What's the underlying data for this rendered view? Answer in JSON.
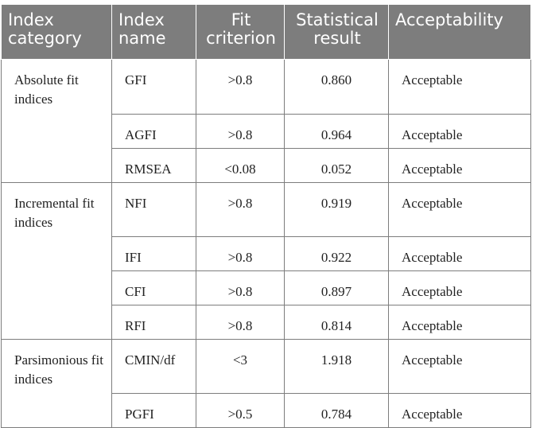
{
  "table": {
    "headers": [
      "Index category",
      "Index name",
      "Fit criterion",
      "Statistical result",
      "Acceptability"
    ],
    "groups": [
      {
        "category": "Absolute fit indices",
        "rows": [
          {
            "name": "GFI",
            "criterion": ">0.8",
            "result": "0.860",
            "acceptability": "Acceptable"
          },
          {
            "name": "AGFI",
            "criterion": ">0.8",
            "result": "0.964",
            "acceptability": "Acceptable"
          },
          {
            "name": "RMSEA",
            "criterion": "<0.08",
            "result": "0.052",
            "acceptability": "Acceptable"
          }
        ]
      },
      {
        "category": "Incremental fit indices",
        "rows": [
          {
            "name": "NFI",
            "criterion": ">0.8",
            "result": "0.919",
            "acceptability": "Acceptable"
          },
          {
            "name": "IFI",
            "criterion": ">0.8",
            "result": "0.922",
            "acceptability": "Acceptable"
          },
          {
            "name": "CFI",
            "criterion": ">0.8",
            "result": "0.897",
            "acceptability": "Acceptable"
          },
          {
            "name": "RFI",
            "criterion": ">0.8",
            "result": "0.814",
            "acceptability": "Acceptable"
          }
        ]
      },
      {
        "category": "Parsimonious fit indices",
        "rows": [
          {
            "name": "CMIN/df",
            "criterion": "<3",
            "result": "1.918",
            "acceptability": "Acceptable"
          },
          {
            "name": "PGFI",
            "criterion": ">0.5",
            "result": "0.784",
            "acceptability": "Acceptable"
          }
        ]
      }
    ],
    "colors": {
      "header_background": "#7d7d7d",
      "header_text": "#ffffff",
      "border": "#7d7d7d"
    }
  }
}
